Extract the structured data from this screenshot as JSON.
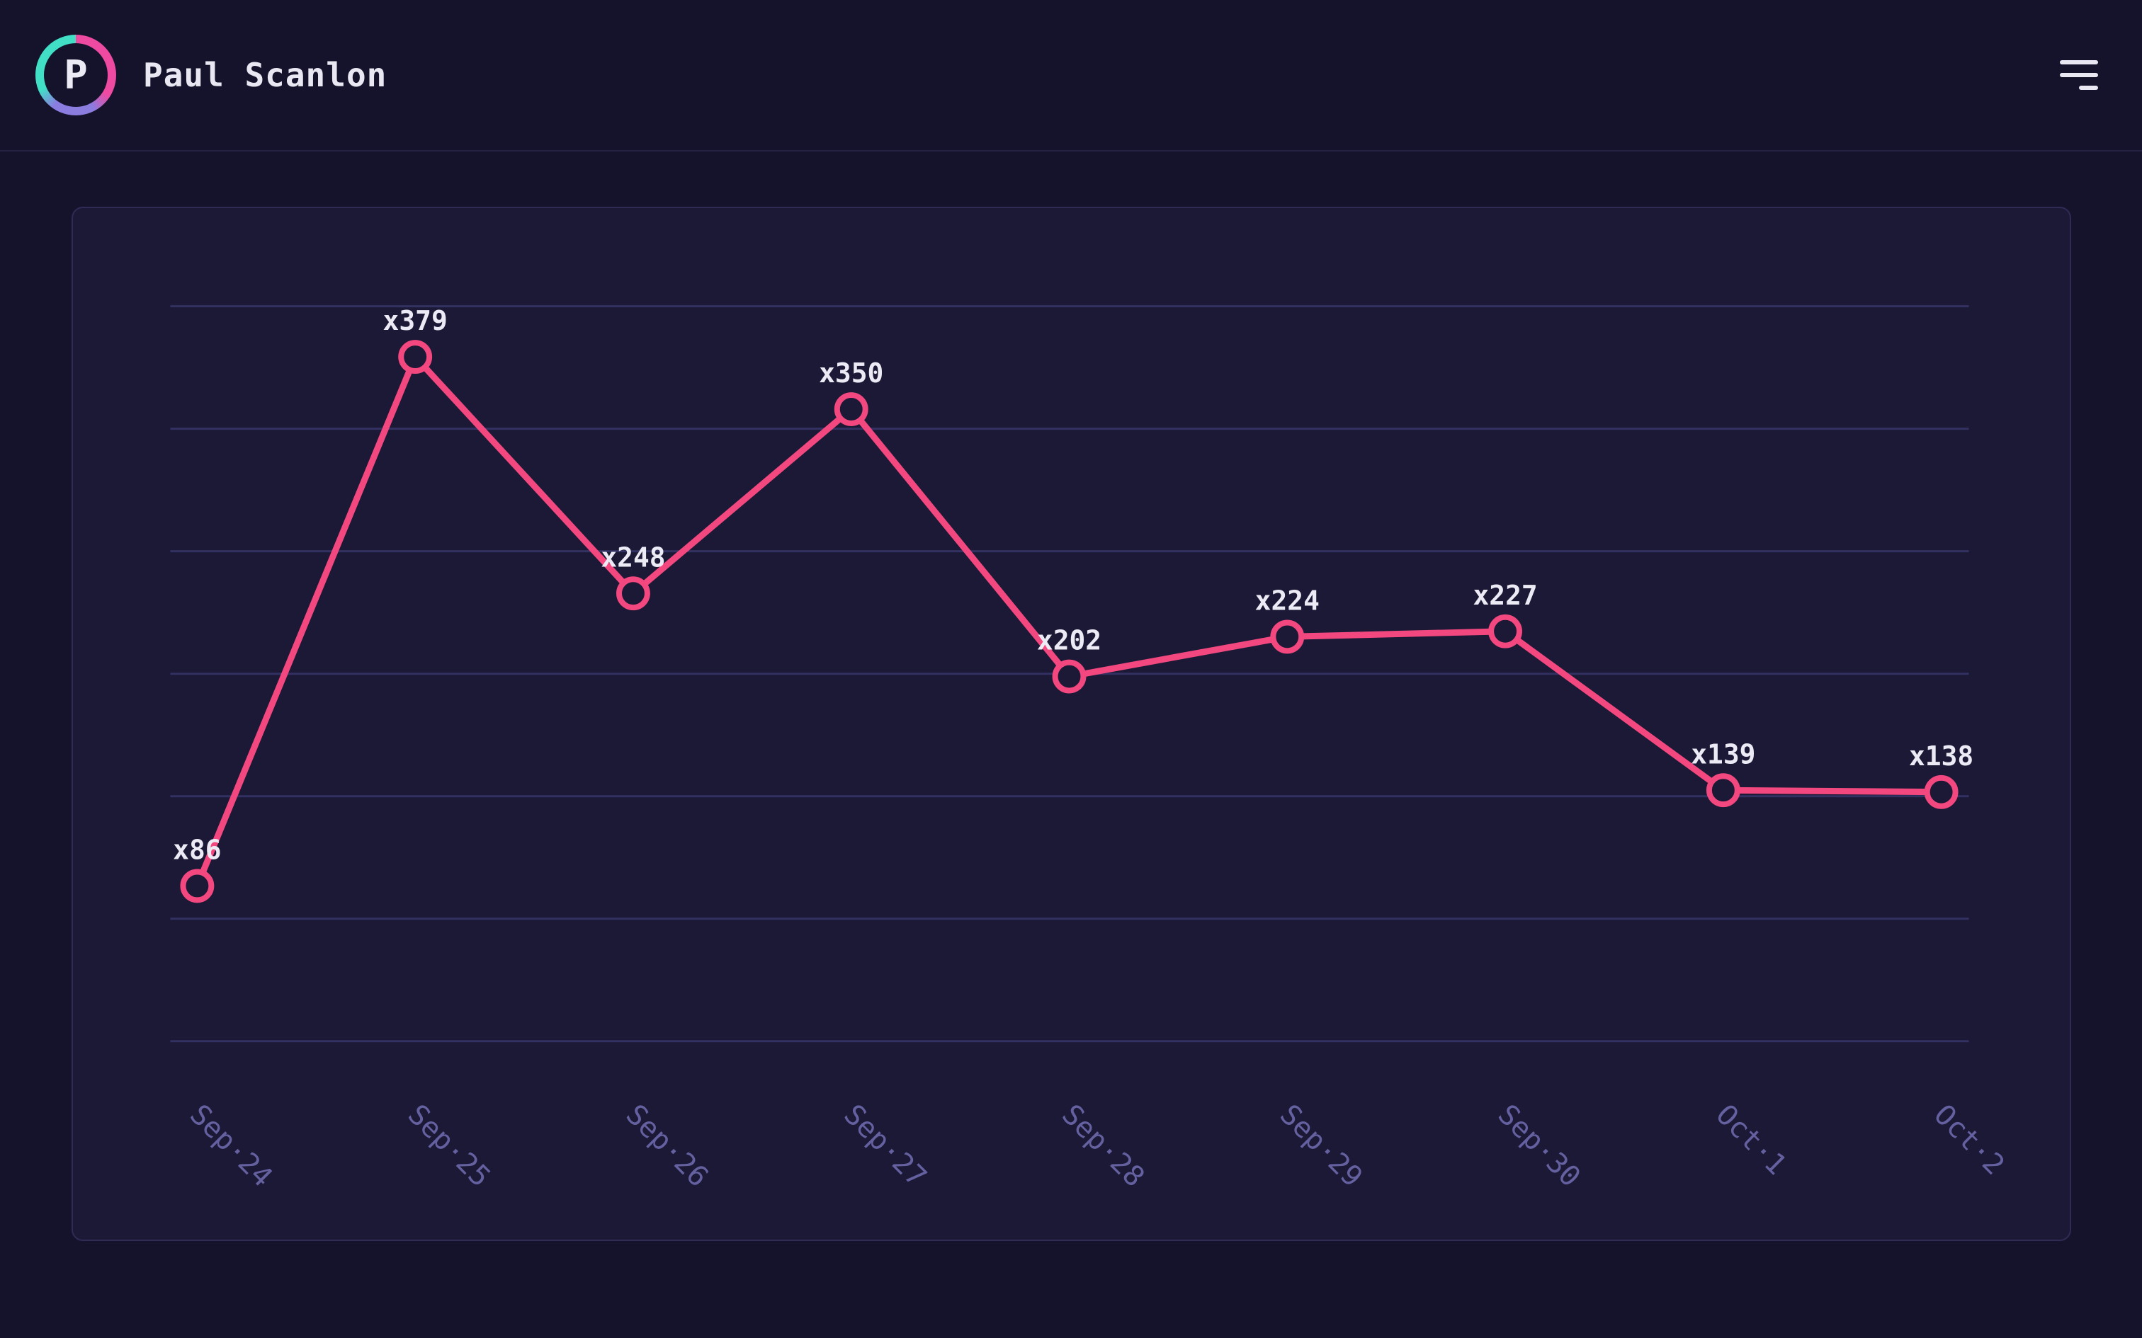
{
  "header": {
    "avatar_initial": "P",
    "user_name": "Paul Scanlon"
  },
  "icons": {
    "menu": "hamburger-menu-icon"
  },
  "chart_data": {
    "type": "line",
    "title": "",
    "xlabel": "",
    "ylabel": "",
    "categories": [
      "Sep·24",
      "Sep·25",
      "Sep·26",
      "Sep·27",
      "Sep·28",
      "Sep·29",
      "Sep·30",
      "Oct·1",
      "Oct·2"
    ],
    "values": [
      86,
      379,
      248,
      350,
      202,
      224,
      227,
      139,
      138
    ],
    "point_labels": [
      "x86",
      "x379",
      "x248",
      "x350",
      "x202",
      "x224",
      "x227",
      "x139",
      "x138"
    ],
    "ylim": [
      0,
      407
    ],
    "gridline_count": 7,
    "grid": true,
    "legend": false,
    "x_tick_angle_deg": 45,
    "marker": "hollow-circle",
    "line_color": "#f3487f",
    "marker_fill": "#1b1936",
    "point_label_color": "#eceaf4",
    "axis_label_color": "#6561a0",
    "grid_color": "#333161"
  },
  "theme": {
    "page_bg": "#15132c",
    "card_bg": "#1b1936",
    "card_border": "#2e2b54",
    "header_border": "#252243",
    "text_primary": "#e9e8f2",
    "accent_pink": "#f3487f",
    "avatar_ring_teal": "#40dfc6",
    "avatar_ring_pink": "#ee4aa2",
    "avatar_ring_purple": "#8b7ce0"
  }
}
